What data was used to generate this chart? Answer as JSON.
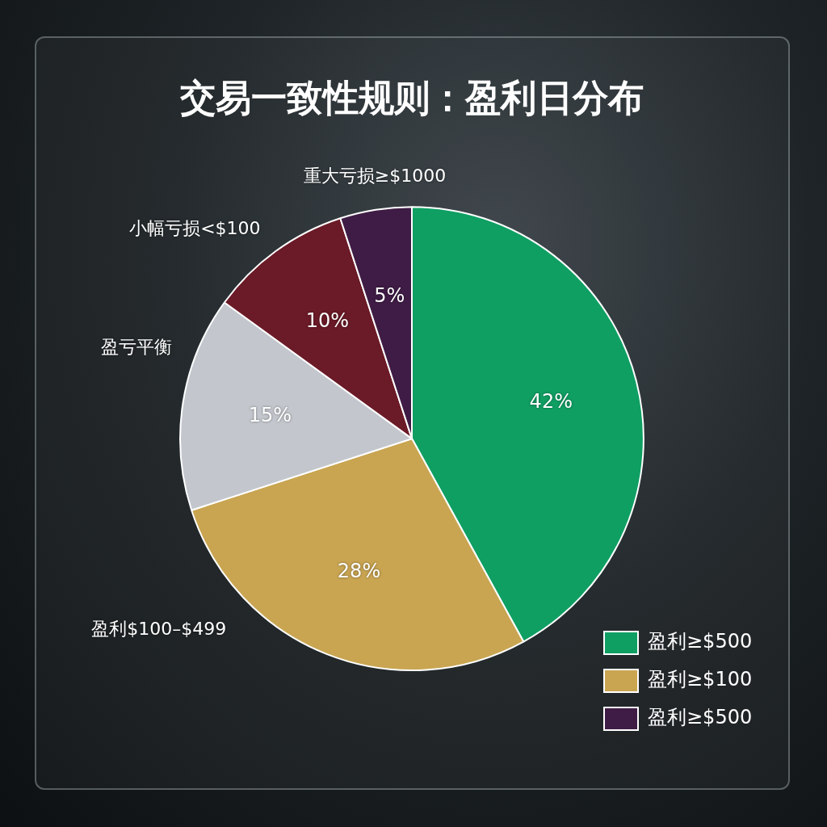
{
  "chart_data": {
    "type": "pie",
    "title": "交易一致性规则：盈利日分布",
    "categories": [
      "盈利≥$500",
      "盈利≥$100",
      null,
      null,
      "盈利≥$500"
    ],
    "values": [
      42,
      28,
      15,
      10,
      5
    ],
    "colors": [
      "#0f9f63",
      "#c9a552",
      "#c3c7cd",
      "#6b1a27",
      "#3f1c45"
    ],
    "value_labels": [
      "42%",
      "28%",
      "15%",
      "10%",
      "5%"
    ],
    "legend": "bottom right",
    "annotations": [
      "盈利$100–$499",
      "盈亏平衡",
      "小幅亏损<$100",
      "重大亏损≥$1000"
    ]
  }
}
